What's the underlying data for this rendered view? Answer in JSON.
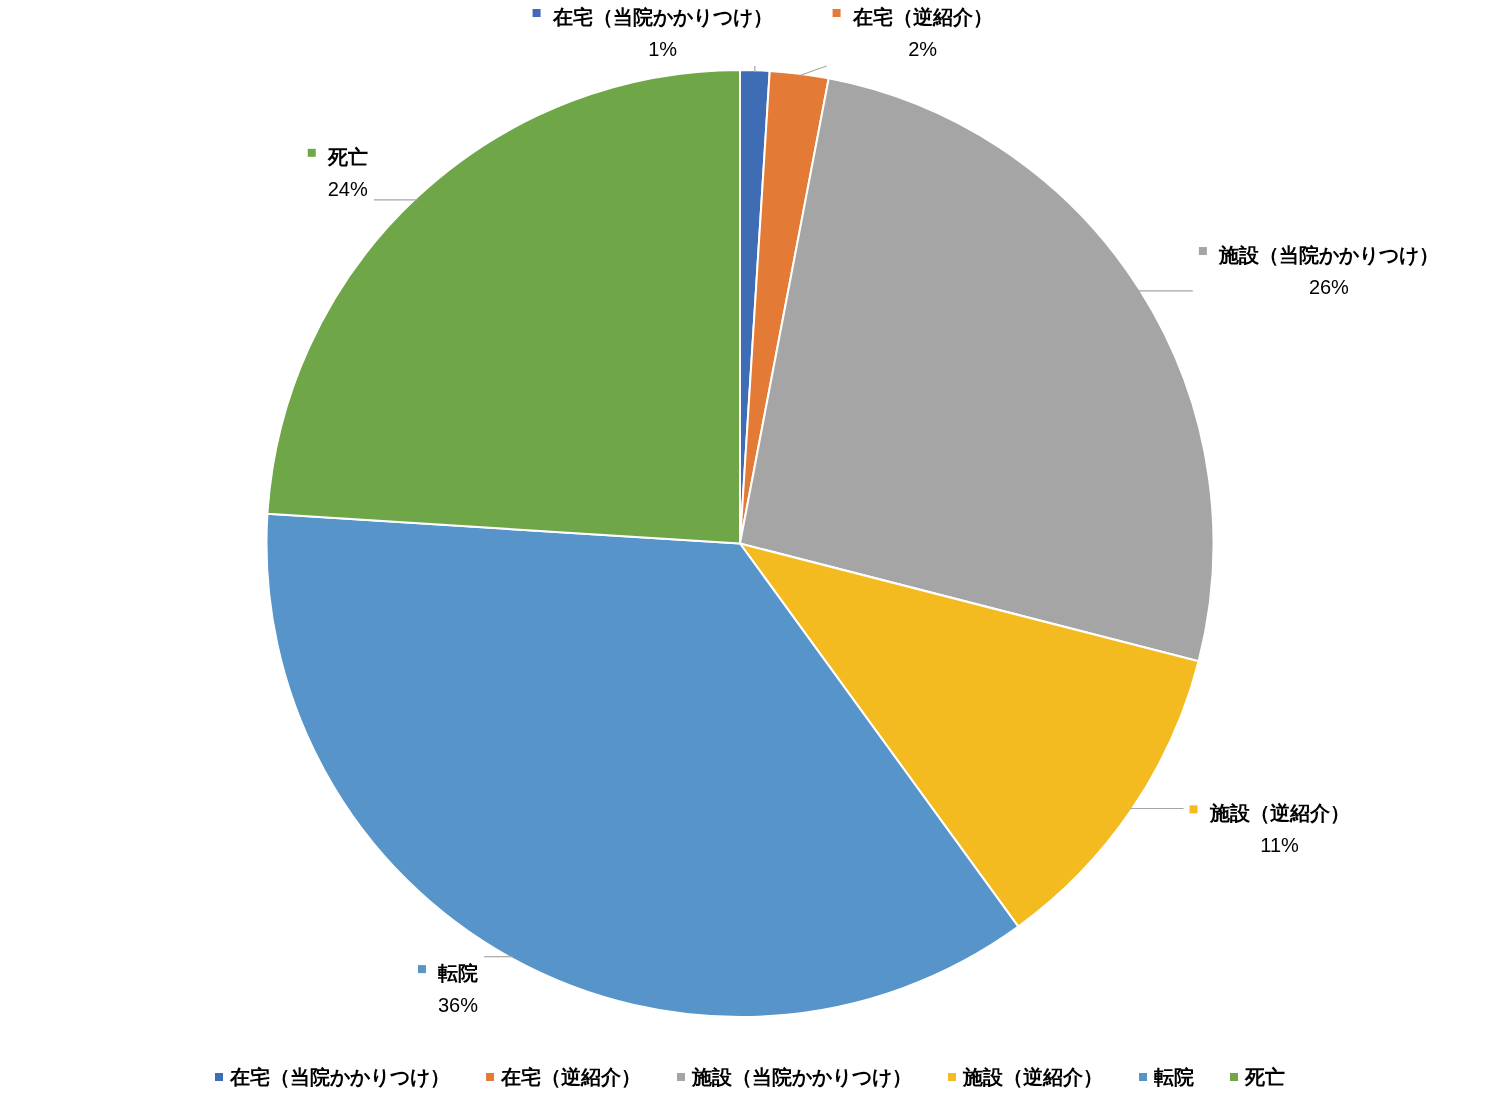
{
  "chart_data": {
    "type": "pie",
    "categories": [
      "在宅（当院かかりつけ）",
      "在宅（逆紹介）",
      "施設（当院かかりつけ）",
      "施設（逆紹介）",
      "転院",
      "死亡"
    ],
    "values": [
      1,
      2,
      26,
      11,
      36,
      24
    ],
    "colors": [
      "#3e6db5",
      "#e37a35",
      "#a5a5a5",
      "#f4bb21",
      "#5794c9",
      "#6fa648"
    ],
    "value_labels": [
      "1%",
      "2%",
      "26%",
      "11%",
      "36%",
      "24%"
    ],
    "legend": "bottom"
  }
}
